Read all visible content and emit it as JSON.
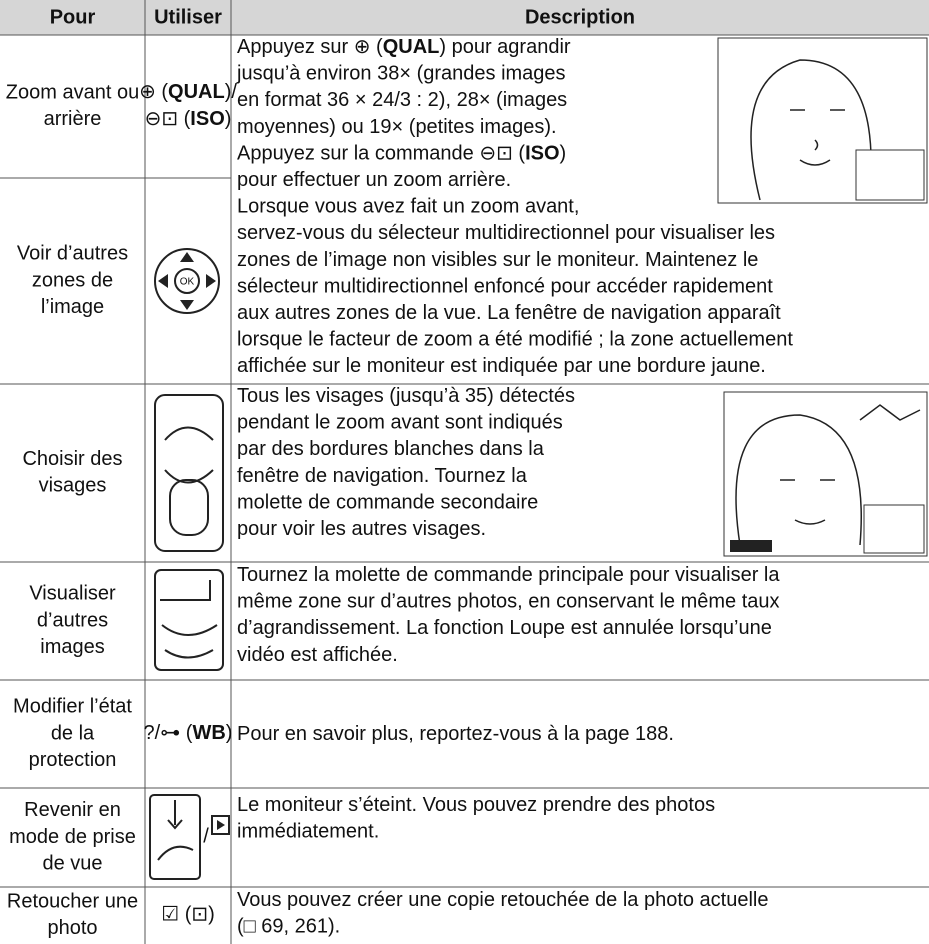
{
  "header": {
    "columns": [
      "Pour",
      "Utiliser",
      "Description"
    ]
  },
  "rows": [
    {
      "pour": [
        "Zoom avant ou",
        "arrière"
      ],
      "utiliser": [
        [
          "⊕ (",
          "QUAL",
          ")/"
        ],
        [
          "⊖⊡ (",
          "ISO",
          ")"
        ]
      ],
      "description": [
        [
          "Appuyez sur ⊕ (",
          "QUAL",
          ") pour agrandir"
        ],
        [
          "jusqu’à environ 38× (grandes images"
        ],
        [
          "en format 36 × 24/3 : 2), 28× (images"
        ],
        [
          "moyennes) ou 19× (petites images)."
        ],
        [
          "Appuyez sur la commande ⊖⊡ (",
          "ISO",
          ")"
        ],
        [
          "pour effectuer un zoom arrière."
        ],
        [
          "Lorsque vous avez fait un zoom avant,"
        ],
        [
          "servez-vous du sélecteur multidirectionnel pour visualiser les"
        ],
        [
          "zones de l’image non visibles sur le moniteur.  Maintenez le"
        ],
        [
          "sélecteur multidirectionnel enfoncé pour accéder rapidement"
        ],
        [
          "aux autres zones de la vue.  La fenêtre de navigation apparaît"
        ],
        [
          "lorsque le facteur de zoom a été modifié ; la zone actuellement"
        ],
        [
          "affichée sur le moniteur est indiquée par une bordure jaune."
        ]
      ]
    },
    {
      "pour": [
        "Voir d’autres",
        "zones de",
        "l’image"
      ]
    },
    {
      "pour": [
        "Choisir des",
        "visages"
      ],
      "description": [
        [
          "Tous les visages (jusqu’à 35) détectés"
        ],
        [
          "pendant le zoom avant sont indiqués"
        ],
        [
          "par des bordures blanches dans la"
        ],
        [
          "fenêtre de navigation.  Tournez la"
        ],
        [
          "molette de commande secondaire"
        ],
        [
          "pour voir les autres visages."
        ]
      ]
    },
    {
      "pour": [
        "Visualiser",
        "d’autres",
        "images"
      ],
      "description": [
        [
          "Tournez la molette de commande principale pour visualiser la"
        ],
        [
          "même zone sur d’autres photos, en conservant le même taux"
        ],
        [
          "d’agrandissement.  La fonction Loupe est annulée lorsqu’une"
        ],
        [
          "vidéo est affichée."
        ]
      ]
    },
    {
      "pour": [
        "Modifier l’état",
        "de la",
        "protection"
      ],
      "utiliser": [
        [
          "?/⊶ (",
          "WB",
          ")"
        ]
      ],
      "description": [
        [
          "Pour en savoir plus, reportez-vous à la page 188."
        ]
      ]
    },
    {
      "pour": [
        "Revenir en",
        "mode de prise",
        "de vue"
      ],
      "utiliser": [
        [
          "/"
        ]
      ],
      "description": [
        [
          "Le moniteur s’éteint.  Vous pouvez prendre des photos"
        ],
        [
          "immédiatement."
        ]
      ]
    },
    {
      "pour": [
        "Retoucher une",
        "photo"
      ],
      "utiliser": [
        [
          "☑ (⊡)"
        ]
      ],
      "description": [
        [
          "Vous pouvez créer une copie retouchée de la photo actuelle"
        ],
        [
          "(□ 69, 261)."
        ]
      ]
    }
  ]
}
